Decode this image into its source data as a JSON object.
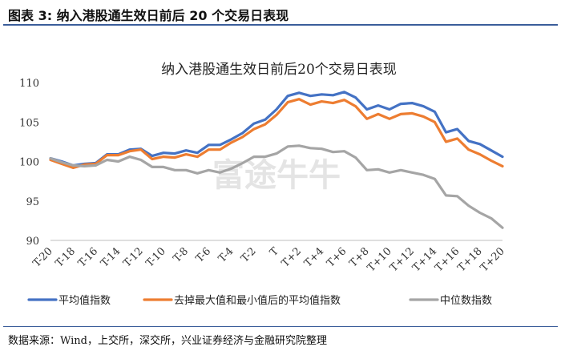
{
  "header": {
    "title": "图表 3:  纳入港股通生效日前后 20 个交易日表现"
  },
  "footer": {
    "source": "数据来源：Wind，上交所，深交所，兴业证券经济与金融研究院整理"
  },
  "watermark": {
    "text": "富途牛牛"
  },
  "colors": {
    "accent": "#3b5d9a"
  },
  "chart_data": {
    "type": "line",
    "title": "纳入港股通生效日前后20个交易日表现",
    "categories": [
      "T-20",
      "T-19",
      "T-18",
      "T-17",
      "T-16",
      "T-15",
      "T-14",
      "T-13",
      "T-12",
      "T-11",
      "T-10",
      "T-9",
      "T-8",
      "T-7",
      "T-6",
      "T-5",
      "T-4",
      "T-3",
      "T-2",
      "T-1",
      "T",
      "T+1",
      "T+2",
      "T+3",
      "T+4",
      "T+5",
      "T+6",
      "T+7",
      "T+8",
      "T+9",
      "T+10",
      "T+11",
      "T+12",
      "T+13",
      "T+14",
      "T+15",
      "T+16",
      "T+17",
      "T+18",
      "T+19",
      "T+20"
    ],
    "tick_labels": [
      "T-20",
      "T-18",
      "T-16",
      "T-14",
      "T-12",
      "T-10",
      "T-8",
      "T-6",
      "T-4",
      "T-2",
      "T",
      "T+2",
      "T+4",
      "T+6",
      "T+8",
      "T+10",
      "T+12",
      "T+14",
      "T+16",
      "T+18",
      "T+20"
    ],
    "ylim": [
      90,
      110
    ],
    "yticks": [
      90,
      95,
      100,
      105,
      110
    ],
    "grid": false,
    "legend_position": "bottom",
    "series": [
      {
        "name": "平均值指数",
        "color": "#4472c4",
        "values": [
          100.4,
          100.0,
          99.5,
          99.7,
          99.8,
          100.9,
          100.9,
          101.5,
          101.6,
          100.7,
          101.1,
          101.0,
          101.4,
          101.1,
          102.1,
          102.1,
          102.8,
          103.6,
          104.8,
          105.3,
          106.6,
          108.3,
          108.7,
          108.3,
          108.5,
          108.4,
          108.8,
          108.1,
          106.6,
          107.1,
          106.6,
          107.3,
          107.4,
          107.0,
          106.3,
          103.7,
          104.1,
          102.6,
          102.2,
          101.4,
          100.6
        ]
      },
      {
        "name": "去掉最大值和最小值后的平均值指数",
        "color": "#ed7d31",
        "values": [
          100.2,
          99.7,
          99.2,
          99.6,
          99.7,
          100.8,
          100.8,
          101.3,
          101.5,
          100.3,
          100.6,
          100.5,
          100.9,
          100.6,
          101.5,
          101.5,
          102.4,
          103.1,
          104.1,
          104.7,
          105.9,
          107.5,
          107.9,
          107.2,
          107.6,
          107.4,
          107.8,
          107.0,
          105.4,
          106.0,
          105.4,
          106.0,
          106.1,
          105.7,
          105.0,
          102.5,
          102.9,
          101.5,
          100.9,
          100.1,
          99.4
        ]
      },
      {
        "name": "中位数指数",
        "color": "#a5a5a5",
        "values": [
          100.4,
          99.9,
          99.5,
          99.4,
          99.5,
          100.2,
          100.0,
          100.6,
          100.2,
          99.3,
          99.3,
          98.9,
          98.9,
          98.5,
          98.9,
          98.6,
          99.1,
          99.8,
          100.6,
          100.6,
          101.0,
          101.9,
          102.0,
          101.7,
          101.6,
          101.2,
          101.3,
          100.5,
          98.9,
          99.0,
          98.6,
          98.9,
          98.6,
          98.3,
          97.8,
          95.7,
          95.6,
          94.4,
          93.5,
          92.8,
          91.6
        ]
      }
    ]
  }
}
